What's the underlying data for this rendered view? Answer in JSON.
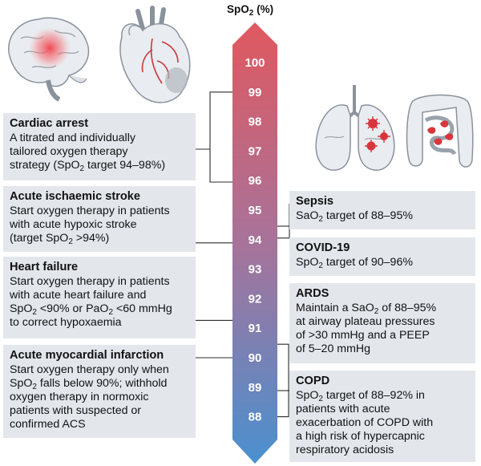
{
  "axis_title": {
    "main": "SpO",
    "sub": "2",
    "unit": " (%)"
  },
  "scale": {
    "values": [
      "100",
      "99",
      "98",
      "97",
      "96",
      "95",
      "94",
      "93",
      "92",
      "91",
      "90",
      "89",
      "88"
    ],
    "colors": {
      "top": "#e0585f",
      "middle": "#a7739a",
      "bottom": "#4a90cf"
    }
  },
  "left_boxes": [
    {
      "title": "Cardiac arrest",
      "body_html": "A titrated and individually\ntailored oxygen therapy\nstrategy (SpO<sub>2</sub> target 94–98%)"
    },
    {
      "title": "Acute ischaemic stroke",
      "body_html": "Start oxygen therapy in patients\nwith acute hypoxic stroke\n(target SpO<sub>2</sub> >94%)"
    },
    {
      "title": "Heart failure",
      "body_html": "Start oxygen therapy in patients\nwith acute heart failure and\nSpO<sub>2</sub> <90% or PaO<sub>2</sub> <60 mmHg\nto correct hypoxaemia"
    },
    {
      "title": "Acute myocardial infarction",
      "body_html": "Start oxygen therapy only when\nSpO<sub>2</sub> falls below 90%; withhold\noxygen therapy in normoxic\npatients with suspected or\nconfirmed ACS"
    }
  ],
  "right_boxes": [
    {
      "title": "Sepsis",
      "body_html": "SaO<sub>2</sub> target of 88–95%"
    },
    {
      "title": "COVID-19",
      "body_html": "SpO<sub>2</sub> target of 90–96%"
    },
    {
      "title": "ARDS",
      "body_html": "Maintain a SaO<sub>2</sub> of 88–95%\nat airway plateau pressures\nof >30 mmHg and a PEEP\nof 5–20 mmHg"
    },
    {
      "title": "COPD",
      "body_html": "SpO<sub>2</sub> target of 88–92% in\npatients with acute\nexacerbation of COPD with\na high risk of hypercapnic\nrespiratory acidosis"
    }
  ],
  "illustrations": [
    "brain-icon",
    "heart-icon",
    "lungs-icon",
    "intestines-icon"
  ]
}
